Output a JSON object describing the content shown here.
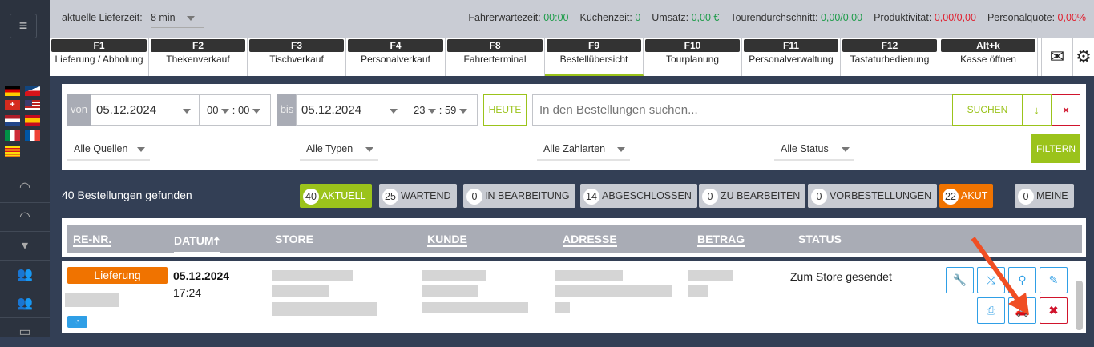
{
  "sidebar": {
    "menu_icon": "hamburger-icon",
    "flags": [
      "de",
      "cz",
      "ch",
      "us",
      "nl",
      "es",
      "it",
      "fr",
      "catalonia"
    ],
    "items": [
      "speedometer-icon",
      "speedometer-icon",
      "bucket-icon",
      "users-icon",
      "users-icon",
      "monitor-icon"
    ]
  },
  "topbar": {
    "delivery_label": "aktuelle Lieferzeit:",
    "delivery_value": "8 min",
    "stats": [
      {
        "label": "Fahrerwartezeit:",
        "value": "00:00",
        "color": "#1e9c4a"
      },
      {
        "label": "Küchenzeit:",
        "value": "0",
        "color": "#1e9c4a"
      },
      {
        "label": "Umsatz:",
        "value": "0,00 €",
        "color": "#1e9c4a"
      },
      {
        "label": "Tourendurchschnitt:",
        "value": "0,00/0,00",
        "color": "#1e9c4a"
      },
      {
        "label": "Produktivität:",
        "value": "0,00/0,00",
        "color": "#e0202f"
      },
      {
        "label": "Personalquote:",
        "value": "0,00%",
        "color": "#e0202f"
      }
    ]
  },
  "tabs": [
    {
      "key": "F1",
      "label": "Lieferung / Abholung"
    },
    {
      "key": "F2",
      "label": "Thekenverkauf"
    },
    {
      "key": "F3",
      "label": "Tischverkauf"
    },
    {
      "key": "F4",
      "label": "Personalverkauf"
    },
    {
      "key": "F8",
      "label": "Fahrerterminal"
    },
    {
      "key": "F9",
      "label": "Bestellübersicht",
      "active": true
    },
    {
      "key": "F10",
      "label": "Tourplanung"
    },
    {
      "key": "F11",
      "label": "Personalverwaltung"
    },
    {
      "key": "F12",
      "label": "Tastaturbedienung"
    },
    {
      "key": "Alt+k",
      "label": "Kasse öffnen"
    }
  ],
  "filters": {
    "von_label": "von",
    "von_date": "05.12.2024",
    "von_hour": "00",
    "von_min": "00",
    "bis_label": "bis",
    "bis_date": "05.12.2024",
    "bis_hour": "23",
    "bis_min": "59",
    "today": "HEUTE",
    "search_placeholder": "In den Bestellungen suchen...",
    "search_button": "SUCHEN",
    "sources": "Alle Quellen",
    "types": "Alle Typen",
    "payments": "Alle Zahlarten",
    "status": "Alle Status",
    "filter_button": "FILTERN",
    "accent": "#9bc31b"
  },
  "summary": "40 Bestellungen gefunden",
  "pills": [
    {
      "count": "40",
      "label": "AKTUELL",
      "color": "#9bc31b"
    },
    {
      "count": "25",
      "label": "WARTEND"
    },
    {
      "count": "0",
      "label": "IN BEARBEITUNG"
    },
    {
      "count": "14",
      "label": "ABGESCHLOSSEN"
    },
    {
      "count": "0",
      "label": "ZU BEARBEITEN"
    },
    {
      "count": "0",
      "label": "VORBESTELLUNGEN"
    },
    {
      "count": "22",
      "label": "AKUT",
      "color": "#f07300"
    },
    {
      "count": "0",
      "label": "MEINE"
    }
  ],
  "table": {
    "headers": [
      "RE-NR.",
      "DATUM",
      "STORE",
      "KUNDE",
      "ADRESSE",
      "BETRAG",
      "STATUS"
    ],
    "rows": [
      {
        "type": "Lieferung",
        "date": "05.12.2024",
        "time": "17:24",
        "status": "Zum Store gesendet"
      }
    ]
  }
}
